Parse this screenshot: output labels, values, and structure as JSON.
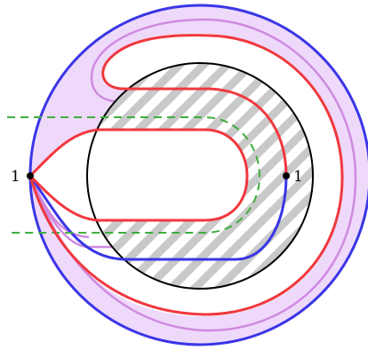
{
  "labels": {
    "left_point": "1",
    "right_point": "1"
  },
  "colors": {
    "outer_circle": "#3a36e6",
    "shaded_band_fill": "#eed9fb",
    "lavender_curve": "#d08ae0",
    "red_curve": "#f0383e",
    "dashed_curve": "#3fae3f",
    "inner_circle": "#000000",
    "hatch_fill": "#c9c9c9",
    "points": "#000000"
  }
}
